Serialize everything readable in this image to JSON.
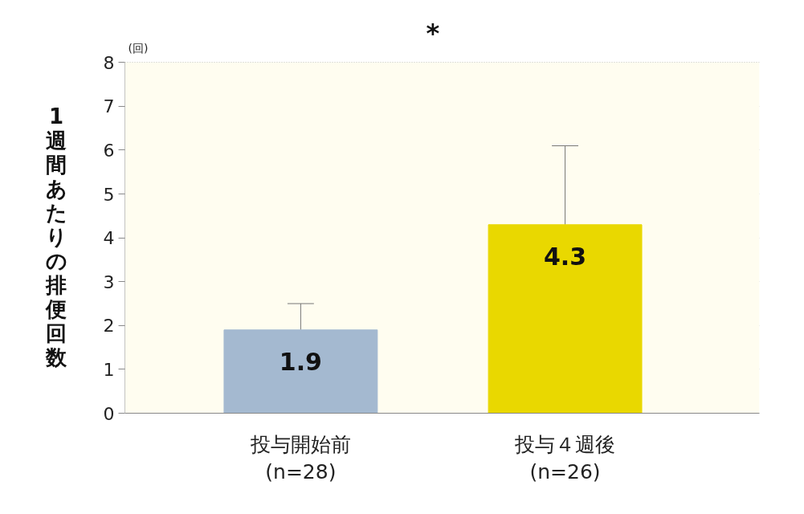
{
  "chart_data": {
    "type": "bar",
    "categories": [
      "投与開始前\n(n=28)",
      "投与４週後\n(n=26)"
    ],
    "values": [
      1.9,
      4.3
    ],
    "colors": [
      "#a4b9d0",
      "#e9d800"
    ],
    "errors": [
      [
        1.9,
        2.5
      ],
      [
        4.3,
        6.1
      ]
    ],
    "ylabel": "1週間あたりの排便回数",
    "ylim": [
      0,
      8
    ],
    "yticks": [
      0,
      1,
      2,
      3,
      4,
      5,
      6,
      7,
      8
    ],
    "grid": "y",
    "data_labels": true,
    "annotations": [
      "(回)",
      "*"
    ]
  }
}
